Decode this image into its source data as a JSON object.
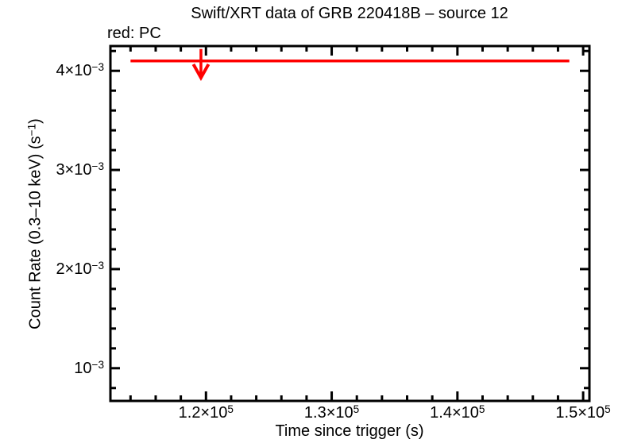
{
  "header": {
    "title": "Swift/XRT data of GRB 220418B – source 12",
    "legend_label": "red: PC"
  },
  "colors": {
    "pc_red": "#ff0000",
    "axis_black": "#000000",
    "background": "#ffffff"
  },
  "chart_data": {
    "type": "scatter",
    "title": "Swift/XRT data of GRB 220418B – source 12",
    "xlabel": "Time since trigger (s)",
    "ylabel": "Count Rate (0.3–10 keV) (s−1)",
    "ylabel_parts": {
      "pre": "Count Rate (0.3–10 keV) (s",
      "sup": "−1",
      "post": ")"
    },
    "x_scale": "linear",
    "y_scale": "linear",
    "xlim": [
      112400,
      150500
    ],
    "ylim": [
      0.00067,
      0.00425
    ],
    "grid": false,
    "legend": {
      "position": "top-left",
      "entries": [
        {
          "label": "red: PC",
          "mode": "PC",
          "color": "#ff0000"
        }
      ]
    },
    "x_ticks": {
      "major": [
        {
          "value": 120000,
          "pre": "1.2×10",
          "sup": "5"
        },
        {
          "value": 130000,
          "pre": "1.3×10",
          "sup": "5"
        },
        {
          "value": 140000,
          "pre": "1.4×10",
          "sup": "5"
        },
        {
          "value": 150000,
          "pre": "1.5×10",
          "sup": "5"
        }
      ],
      "minor_step": 2000,
      "major_step": 10000
    },
    "y_ticks": {
      "major": [
        {
          "value": 0.001,
          "pre": "10",
          "sup": "−3"
        },
        {
          "value": 0.002,
          "pre": "2×10",
          "sup": "−3"
        },
        {
          "value": 0.003,
          "pre": "3×10",
          "sup": "−3"
        },
        {
          "value": 0.004,
          "pre": "4×10",
          "sup": "−3"
        }
      ],
      "minor_step": 0.0002,
      "major_step": 0.001
    },
    "series": [
      {
        "name": "PC",
        "color": "#ff0000",
        "marker": "upper-limit",
        "points": [
          {
            "type": "upper_limit",
            "time": 119600,
            "rate_upper_limit": 0.0041,
            "time_min": 114000,
            "time_max": 148900,
            "arrow_top_rate": 0.00422,
            "arrow_tip_rate": 0.00393
          }
        ]
      }
    ]
  }
}
